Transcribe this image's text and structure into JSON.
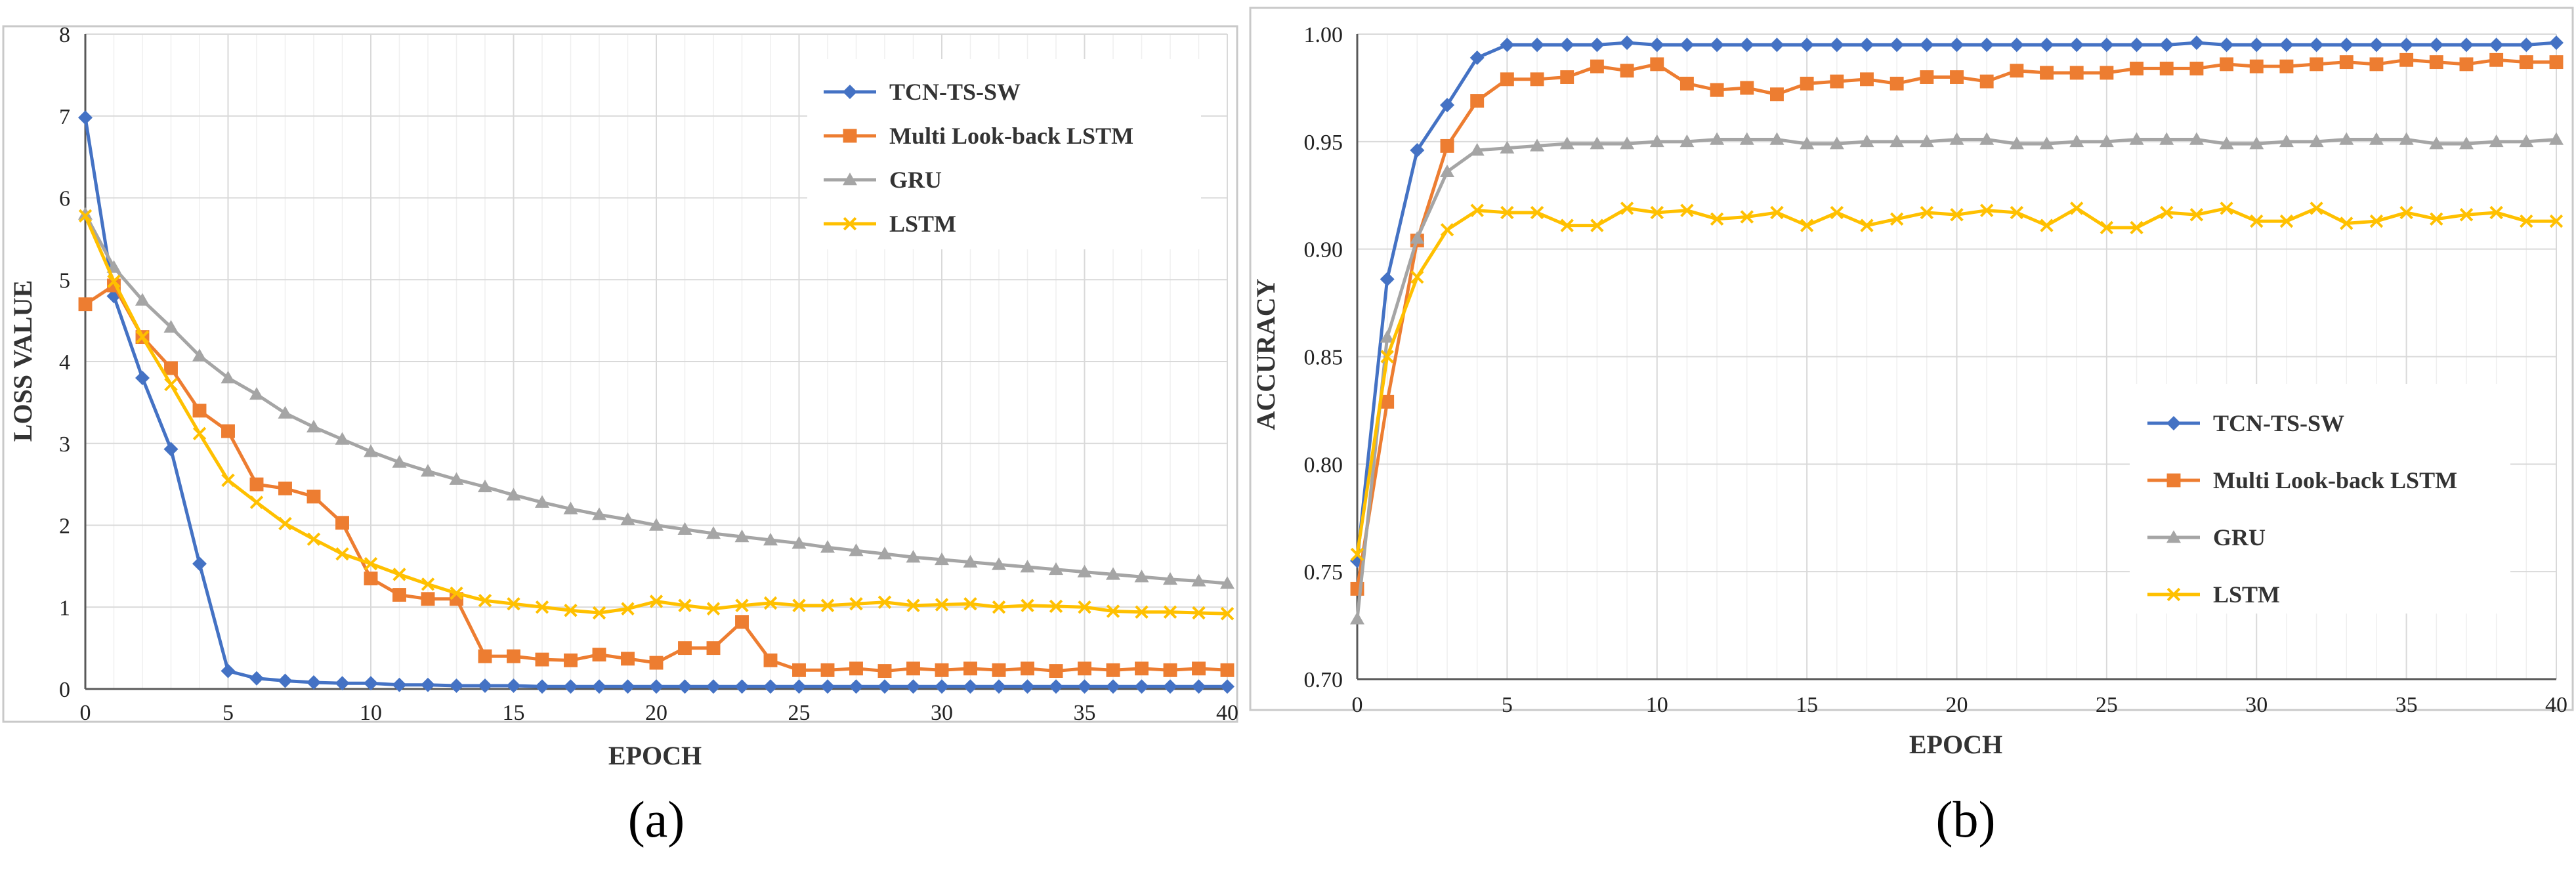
{
  "chart_data": [
    {
      "id": "a",
      "type": "line",
      "caption": "(a)",
      "xlabel": "EPOCH",
      "ylabel": "LOSS VALUE",
      "xlim": [
        0,
        40
      ],
      "ylim": [
        0,
        8
      ],
      "xticks": [
        0,
        5,
        10,
        15,
        20,
        25,
        30,
        35,
        40
      ],
      "yticks": [
        0,
        1,
        2,
        3,
        4,
        5,
        6,
        7,
        8
      ],
      "ytick_labels": [
        "0",
        "1",
        "2",
        "3",
        "4",
        "5",
        "6",
        "7",
        "8"
      ],
      "grid": true,
      "legend_position": "top-right",
      "series": [
        {
          "name": "TCN-TS-SW",
          "color": "#4472C4",
          "marker": "diamond",
          "values": [
            6.98,
            4.8,
            3.8,
            2.93,
            1.53,
            0.22,
            0.13,
            0.1,
            0.08,
            0.07,
            0.07,
            0.05,
            0.05,
            0.04,
            0.04,
            0.04,
            0.03,
            0.03,
            0.03,
            0.03,
            0.03,
            0.03,
            0.03,
            0.03,
            0.03,
            0.03,
            0.03,
            0.03,
            0.03,
            0.03,
            0.03,
            0.03,
            0.03,
            0.03,
            0.03,
            0.03,
            0.03,
            0.03,
            0.03,
            0.03,
            0.03
          ]
        },
        {
          "name": "Multi Look-back LSTM",
          "color": "#ED7D31",
          "marker": "square",
          "values": [
            4.7,
            4.93,
            4.3,
            3.92,
            3.4,
            3.15,
            2.5,
            2.45,
            2.35,
            2.03,
            1.35,
            1.15,
            1.1,
            1.1,
            0.4,
            0.4,
            0.36,
            0.35,
            0.42,
            0.37,
            0.32,
            0.5,
            0.5,
            0.82,
            0.35,
            0.23,
            0.23,
            0.25,
            0.22,
            0.25,
            0.23,
            0.25,
            0.23,
            0.25,
            0.22,
            0.25,
            0.23,
            0.25,
            0.23,
            0.25,
            0.23
          ]
        },
        {
          "name": "GRU",
          "color": "#A5A5A5",
          "marker": "triangle",
          "values": [
            5.8,
            5.15,
            4.75,
            4.42,
            4.07,
            3.8,
            3.6,
            3.37,
            3.2,
            3.05,
            2.9,
            2.77,
            2.66,
            2.56,
            2.47,
            2.37,
            2.28,
            2.2,
            2.13,
            2.07,
            2.0,
            1.95,
            1.9,
            1.86,
            1.82,
            1.78,
            1.73,
            1.69,
            1.65,
            1.61,
            1.58,
            1.55,
            1.52,
            1.49,
            1.46,
            1.43,
            1.4,
            1.37,
            1.34,
            1.32,
            1.29
          ]
        },
        {
          "name": "LSTM",
          "color": "#FFC000",
          "marker": "x",
          "values": [
            5.78,
            4.98,
            4.3,
            3.72,
            3.12,
            2.55,
            2.28,
            2.02,
            1.83,
            1.65,
            1.53,
            1.4,
            1.28,
            1.17,
            1.08,
            1.04,
            1.0,
            0.96,
            0.93,
            0.98,
            1.07,
            1.02,
            0.98,
            1.02,
            1.05,
            1.02,
            1.02,
            1.04,
            1.06,
            1.02,
            1.03,
            1.04,
            1.0,
            1.02,
            1.01,
            1.0,
            0.95,
            0.94,
            0.94,
            0.93,
            0.92
          ]
        }
      ]
    },
    {
      "id": "b",
      "type": "line",
      "caption": "(b)",
      "xlabel": "EPOCH",
      "ylabel": "ACCURACY",
      "xlim": [
        0,
        40
      ],
      "ylim": [
        0.7,
        1.0
      ],
      "xticks": [
        0,
        5,
        10,
        15,
        20,
        25,
        30,
        35,
        40
      ],
      "yticks": [
        0.7,
        0.75,
        0.8,
        0.85,
        0.9,
        0.95,
        1.0
      ],
      "ytick_labels": [
        "0.70",
        "0.75",
        "0.80",
        "0.85",
        "0.90",
        "0.95",
        "1.00"
      ],
      "grid": true,
      "legend_position": "right",
      "series": [
        {
          "name": "TCN-TS-SW",
          "color": "#4472C4",
          "marker": "diamond",
          "values": [
            0.755,
            0.886,
            0.946,
            0.967,
            0.989,
            0.995,
            0.995,
            0.995,
            0.995,
            0.996,
            0.995,
            0.995,
            0.995,
            0.995,
            0.995,
            0.995,
            0.995,
            0.995,
            0.995,
            0.995,
            0.995,
            0.995,
            0.995,
            0.995,
            0.995,
            0.995,
            0.995,
            0.995,
            0.996,
            0.995,
            0.995,
            0.995,
            0.995,
            0.995,
            0.995,
            0.995,
            0.995,
            0.995,
            0.995,
            0.995,
            0.996
          ]
        },
        {
          "name": "Multi Look-back LSTM",
          "color": "#ED7D31",
          "marker": "square",
          "values": [
            0.742,
            0.829,
            0.904,
            0.948,
            0.969,
            0.979,
            0.979,
            0.98,
            0.985,
            0.983,
            0.986,
            0.977,
            0.974,
            0.975,
            0.972,
            0.977,
            0.978,
            0.979,
            0.977,
            0.98,
            0.98,
            0.978,
            0.983,
            0.982,
            0.982,
            0.982,
            0.984,
            0.984,
            0.984,
            0.986,
            0.985,
            0.985,
            0.986,
            0.987,
            0.986,
            0.988,
            0.987,
            0.986,
            0.988,
            0.987,
            0.987
          ]
        },
        {
          "name": "GRU",
          "color": "#A5A5A5",
          "marker": "triangle",
          "values": [
            0.728,
            0.859,
            0.905,
            0.936,
            0.946,
            0.947,
            0.948,
            0.949,
            0.949,
            0.949,
            0.95,
            0.95,
            0.951,
            0.951,
            0.951,
            0.949,
            0.949,
            0.95,
            0.95,
            0.95,
            0.951,
            0.951,
            0.949,
            0.949,
            0.95,
            0.95,
            0.951,
            0.951,
            0.951,
            0.949,
            0.949,
            0.95,
            0.95,
            0.951,
            0.951,
            0.951,
            0.949,
            0.949,
            0.95,
            0.95,
            0.951
          ]
        },
        {
          "name": "LSTM",
          "color": "#FFC000",
          "marker": "x",
          "values": [
            0.758,
            0.85,
            0.887,
            0.909,
            0.918,
            0.917,
            0.917,
            0.911,
            0.911,
            0.919,
            0.917,
            0.918,
            0.914,
            0.915,
            0.917,
            0.911,
            0.917,
            0.911,
            0.914,
            0.917,
            0.916,
            0.918,
            0.917,
            0.911,
            0.919,
            0.91,
            0.91,
            0.917,
            0.916,
            0.919,
            0.913,
            0.913,
            0.919,
            0.912,
            0.913,
            0.917,
            0.914,
            0.916,
            0.917,
            0.913,
            0.913
          ]
        }
      ]
    }
  ]
}
